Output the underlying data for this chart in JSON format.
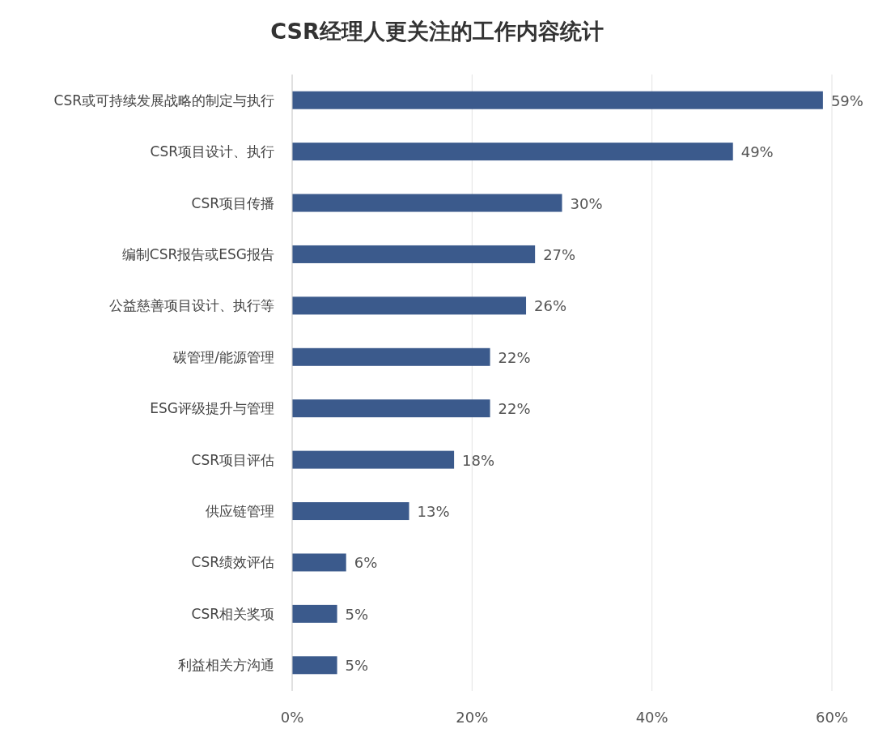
{
  "chart_data": {
    "type": "bar",
    "orientation": "horizontal",
    "title": "CSR经理人更关注的工作内容统计",
    "categories": [
      "CSR或可持续发展战略的制定与执行",
      "CSR项目设计、执行",
      "CSR项目传播",
      "编制CSR报告或ESG报告",
      "公益慈善项目设计、执行等",
      "碳管理/能源管理",
      "ESG评级提升与管理",
      "CSR项目评估",
      "供应链管理",
      "CSR绩效评估",
      "CSR相关奖项",
      "利益相关方沟通"
    ],
    "values": [
      59,
      49,
      30,
      27,
      26,
      22,
      22,
      18,
      13,
      6,
      5,
      5
    ],
    "value_labels": [
      "59%",
      "49%",
      "30%",
      "27%",
      "26%",
      "22%",
      "22%",
      "18%",
      "13%",
      "6%",
      "5%",
      "5%"
    ],
    "color": "#3b5a8c",
    "xlim": [
      0,
      60
    ],
    "xticks": [
      {
        "value": 0,
        "label": "0%"
      },
      {
        "value": 20,
        "label": "20%"
      },
      {
        "value": 40,
        "label": "40%"
      },
      {
        "value": 60,
        "label": "60%"
      }
    ],
    "grid": "x"
  }
}
